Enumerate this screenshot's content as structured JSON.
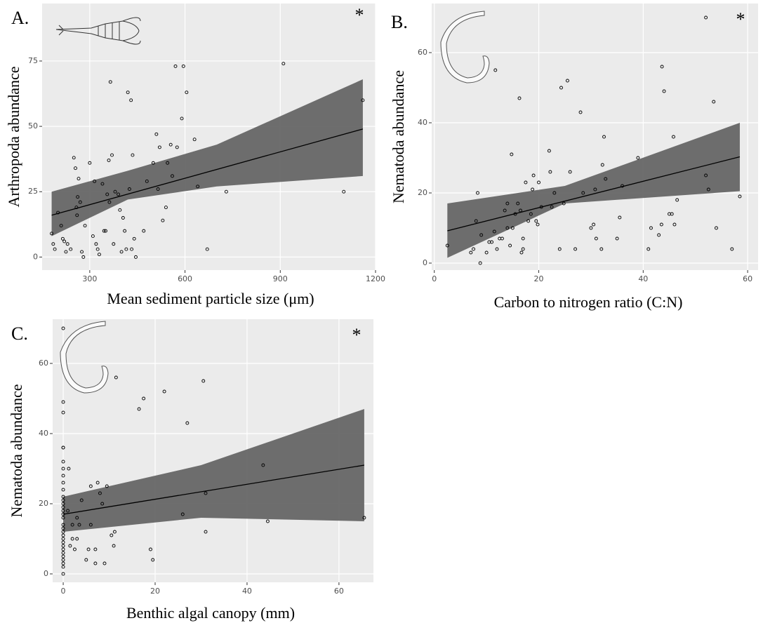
{
  "chart_data": [
    {
      "type": "scatter",
      "label": "A.",
      "annotation": "*",
      "x_label": "Mean sediment particle size (μm)",
      "y_label": "Arthropoda abundance",
      "xlim": [
        150,
        1200
      ],
      "ylim": [
        -5,
        97
      ],
      "xticks": [
        300,
        600,
        900,
        1200
      ],
      "yticks": [
        0,
        25,
        50,
        75
      ],
      "grid": true,
      "point_color": "#000000",
      "line_color": "#000000",
      "band_color": "#666666",
      "x": [
        180,
        185,
        190,
        200,
        210,
        215,
        220,
        225,
        230,
        240,
        250,
        255,
        258,
        260,
        262,
        265,
        270,
        275,
        280,
        285,
        300,
        310,
        315,
        320,
        325,
        330,
        340,
        345,
        350,
        355,
        360,
        362,
        365,
        370,
        375,
        380,
        390,
        395,
        400,
        405,
        410,
        415,
        420,
        425,
        430,
        432,
        435,
        440,
        445,
        470,
        480,
        500,
        510,
        515,
        520,
        530,
        540,
        545,
        555,
        560,
        570,
        575,
        590,
        595,
        605,
        630,
        640,
        670,
        730,
        910,
        1100,
        1160
      ],
      "y": [
        9,
        5,
        3,
        17,
        12,
        7,
        6,
        2,
        5,
        3,
        38,
        34,
        19,
        16,
        23,
        30,
        21,
        2,
        0,
        12,
        36,
        8,
        29,
        5,
        3,
        1,
        28,
        10,
        10,
        24,
        37,
        21,
        67,
        39,
        5,
        25,
        24,
        18,
        2,
        15,
        10,
        3,
        63,
        26,
        60,
        3,
        39,
        7,
        0,
        10,
        29,
        36,
        47,
        26,
        42,
        14,
        19,
        36,
        43,
        31,
        73,
        42,
        53,
        73,
        63,
        45,
        27,
        3,
        25,
        74,
        25,
        60
      ],
      "fit": {
        "x": [
          180,
          1160
        ],
        "y": [
          16,
          49
        ]
      },
      "band": {
        "x": [
          180,
          420,
          700,
          1160
        ],
        "lower": [
          8,
          22,
          27,
          31
        ],
        "upper": [
          25,
          33,
          43,
          68
        ]
      }
    },
    {
      "type": "scatter",
      "label": "B.",
      "annotation": "*",
      "x_label": "Carbon to nitrogen ratio (C:N)",
      "y_label": "Nematoda abundance",
      "xlim": [
        -0.5,
        62
      ],
      "ylim": [
        -2,
        74
      ],
      "xticks": [
        0,
        20,
        40,
        60
      ],
      "yticks": [
        0,
        20,
        40,
        60
      ],
      "grid": true,
      "point_color": "#000000",
      "line_color": "#000000",
      "band_color": "#666666",
      "x": [
        2.5,
        7,
        7.5,
        8,
        8.3,
        8.8,
        9,
        10,
        10.5,
        11,
        11.5,
        11.7,
        12,
        12.5,
        13,
        13.5,
        14,
        14,
        14.5,
        14.8,
        15,
        15.5,
        16,
        16.3,
        16.5,
        16.7,
        17,
        17,
        17.5,
        18,
        18.5,
        18.8,
        19,
        19.5,
        19.8,
        20,
        20.5,
        22,
        22.2,
        22.5,
        23,
        24,
        24.3,
        24.8,
        25.5,
        26,
        27,
        28,
        28.5,
        30,
        30.5,
        30.8,
        31,
        32,
        32.2,
        32.5,
        32.8,
        35,
        35.5,
        36,
        39,
        41,
        41.5,
        43,
        43.5,
        43.6,
        44,
        45,
        45.5,
        45.8,
        46,
        46.5,
        52,
        52.5,
        52,
        53.5,
        54,
        57,
        58.5
      ],
      "y": [
        5,
        3,
        4,
        12,
        20,
        0,
        8,
        3,
        6,
        6,
        9,
        55,
        4,
        7,
        7,
        15,
        17,
        10,
        5,
        31,
        10,
        14,
        17,
        47,
        15,
        3,
        4,
        7,
        23,
        12,
        14,
        21,
        25,
        12,
        11,
        23,
        16,
        32,
        26,
        16,
        20,
        4,
        50,
        17,
        52,
        26,
        4,
        43,
        20,
        10,
        11,
        21,
        7,
        4,
        28,
        36,
        24,
        7,
        13,
        22,
        30,
        4,
        10,
        8,
        11,
        56,
        49,
        14,
        14,
        36,
        11,
        18,
        25,
        21,
        70,
        46,
        10,
        4,
        19
      ],
      "fit": {
        "x": [
          2.5,
          58.5
        ],
        "y": [
          9.2,
          30.3
        ]
      },
      "band": {
        "x": [
          2.5,
          25,
          58.5
        ],
        "lower": [
          1.5,
          17,
          20.5
        ],
        "upper": [
          17,
          22,
          40
        ]
      }
    },
    {
      "type": "scatter",
      "label": "C.",
      "annotation": "*",
      "x_label": "Benthic algal canopy (mm)",
      "y_label": "Nematoda abundance",
      "xlim": [
        -2.3,
        67.5
      ],
      "ylim": [
        -2.4,
        72.6
      ],
      "xticks": [
        0,
        20,
        40,
        60
      ],
      "yticks": [
        0,
        20,
        40,
        60
      ],
      "grid": true,
      "point_color": "#000000",
      "line_color": "#000000",
      "band_color": "#666666",
      "x": [
        0,
        0,
        0,
        0,
        0,
        0,
        0,
        0,
        0,
        0,
        0,
        0,
        0,
        0,
        0,
        0,
        0,
        0,
        0,
        0,
        0,
        0,
        0,
        0,
        0,
        0,
        0,
        0,
        0,
        0,
        0,
        1,
        1.2,
        1.5,
        2,
        2,
        2.5,
        3,
        3,
        3.5,
        4,
        5,
        5.5,
        6,
        6,
        7,
        7.5,
        7,
        8,
        8.5,
        9,
        9.5,
        10.5,
        11,
        11.2,
        11.5,
        16.5,
        17.5,
        19,
        19.5,
        22,
        26,
        27,
        30.5,
        31,
        31,
        43.5,
        44.5,
        65.5
      ],
      "y": [
        70,
        49,
        46,
        36,
        36,
        32,
        30,
        28,
        26,
        24,
        22,
        21,
        20,
        19,
        18,
        17,
        16,
        14,
        13,
        12,
        11,
        10,
        9,
        8,
        7,
        6,
        5,
        4,
        3,
        2,
        0,
        18,
        30,
        8,
        14,
        10,
        7,
        10,
        16,
        14,
        21,
        4,
        7,
        14,
        25,
        3,
        26,
        7,
        23,
        20,
        3,
        25,
        11,
        8,
        12,
        56,
        47,
        50,
        7,
        4,
        52,
        17,
        43,
        55,
        23,
        12,
        31,
        15,
        16
      ],
      "fit": {
        "x": [
          0,
          65.5
        ],
        "y": [
          17,
          31
        ]
      },
      "band": {
        "x": [
          0,
          30,
          65.5
        ],
        "lower": [
          12,
          16,
          15
        ],
        "upper": [
          22,
          31,
          47
        ]
      }
    }
  ]
}
